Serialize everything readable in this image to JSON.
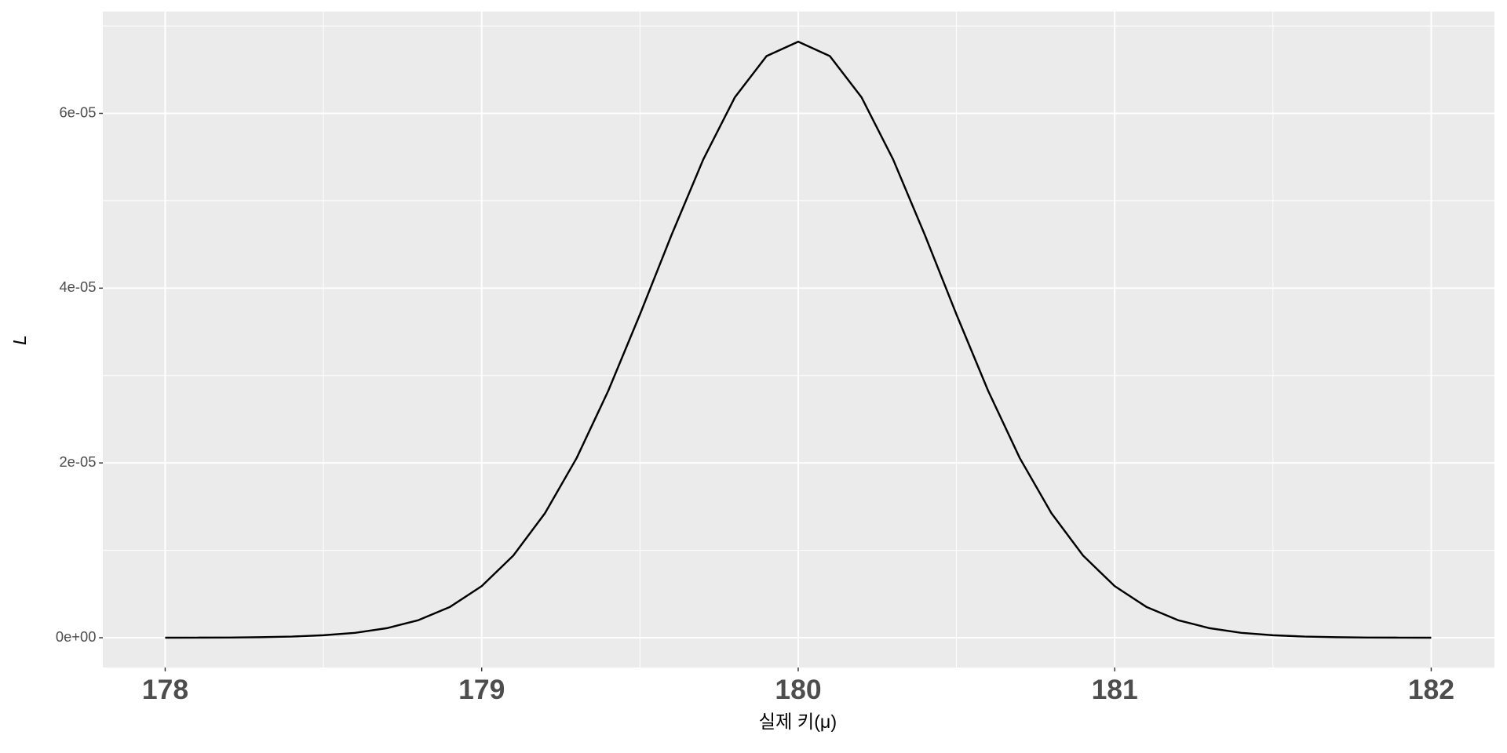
{
  "chart_data": {
    "type": "line",
    "x_label": "실제 키(μ)",
    "y_label": "L",
    "x": [
      178,
      178.1,
      178.2,
      178.3,
      178.4,
      178.5,
      178.6,
      178.7,
      178.8,
      178.9,
      179,
      179.1,
      179.2,
      179.3,
      179.4,
      179.5,
      179.6,
      179.7,
      179.8,
      179.9,
      180,
      180.1,
      180.2,
      180.3,
      180.4,
      180.5,
      180.6,
      180.7,
      180.8,
      180.9,
      181,
      181.1,
      181.2,
      181.3,
      181.4,
      181.5,
      181.6,
      181.7,
      181.8,
      181.9,
      182
    ],
    "series": [
      {
        "color": "#000000",
        "values": [
          0,
          1e-08,
          2e-08,
          6e-08,
          1.3e-07,
          2.8e-07,
          5.6e-07,
          1.09e-06,
          2.01e-06,
          3.53e-06,
          5.9e-06,
          9.4e-06,
          1.425e-05,
          2.056e-05,
          2.826e-05,
          3.699e-05,
          4.61e-05,
          5.472e-05,
          6.184e-05,
          6.655e-05,
          6.82e-05,
          6.655e-05,
          6.184e-05,
          5.472e-05,
          4.61e-05,
          3.699e-05,
          2.826e-05,
          2.056e-05,
          1.425e-05,
          9.4e-06,
          5.9e-06,
          3.53e-06,
          2.01e-06,
          1.09e-06,
          5.6e-07,
          2.8e-07,
          1.3e-07,
          6e-08,
          2e-08,
          1e-08,
          0
        ]
      }
    ],
    "xlim": [
      177.803,
      182.2
    ],
    "ylim": [
      -3.41e-06,
      7.165e-05
    ],
    "xticks": [
      178,
      179,
      180,
      181,
      182
    ],
    "yticks": [
      {
        "value": 0,
        "label": "0e+00"
      },
      {
        "value": 2e-05,
        "label": "2e-05"
      },
      {
        "value": 4e-05,
        "label": "4e-05"
      },
      {
        "value": 6e-05,
        "label": "6e-05"
      }
    ],
    "grid": true,
    "minor_grid": true,
    "panel_color": "#ebebeb"
  }
}
